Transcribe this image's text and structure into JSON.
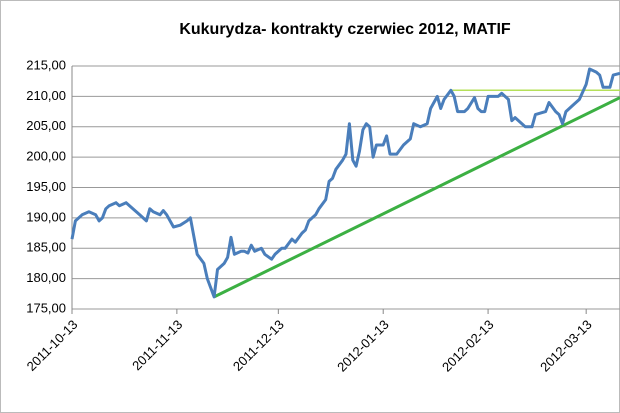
{
  "chart_data": {
    "type": "line",
    "title": "Kukurydza- kontrakty czerwiec 2012, MATIF",
    "x": [
      "2011-10-13",
      "2011-10-14",
      "2011-10-16",
      "2011-10-18",
      "2011-10-20",
      "2011-10-21",
      "2011-10-22",
      "2011-10-23",
      "2011-10-24",
      "2011-10-26",
      "2011-10-27",
      "2011-10-29",
      "2011-10-30",
      "2011-11-01",
      "2011-11-02",
      "2011-11-04",
      "2011-11-05",
      "2011-11-06",
      "2011-11-08",
      "2011-11-09",
      "2011-11-10",
      "2011-11-12",
      "2011-11-14",
      "2011-11-16",
      "2011-11-17",
      "2011-11-18",
      "2011-11-19",
      "2011-11-21",
      "2011-11-22",
      "2011-11-24",
      "2011-11-25",
      "2011-11-27",
      "2011-11-28",
      "2011-11-29",
      "2011-11-30",
      "2011-12-02",
      "2011-12-03",
      "2011-12-04",
      "2011-12-05",
      "2011-12-06",
      "2011-12-08",
      "2011-12-09",
      "2011-12-11",
      "2011-12-12",
      "2011-12-14",
      "2011-12-15",
      "2011-12-17",
      "2011-12-18",
      "2011-12-20",
      "2011-12-21",
      "2011-12-22",
      "2011-12-24",
      "2011-12-25",
      "2011-12-27",
      "2011-12-28",
      "2011-12-29",
      "2011-12-30",
      "2012-01-01",
      "2012-01-02",
      "2012-01-03",
      "2012-01-04",
      "2012-01-05",
      "2012-01-06",
      "2012-01-07",
      "2012-01-08",
      "2012-01-09",
      "2012-01-10",
      "2012-01-11",
      "2012-01-13",
      "2012-01-14",
      "2012-01-15",
      "2012-01-17",
      "2012-01-19",
      "2012-01-21",
      "2012-01-22",
      "2012-01-24",
      "2012-01-26",
      "2012-01-27",
      "2012-01-29",
      "2012-01-30",
      "2012-01-31",
      "2012-02-02",
      "2012-02-03",
      "2012-02-04",
      "2012-02-06",
      "2012-02-07",
      "2012-02-09",
      "2012-02-10",
      "2012-02-11",
      "2012-02-12",
      "2012-02-13",
      "2012-02-16",
      "2012-02-17",
      "2012-02-19",
      "2012-02-20",
      "2012-02-21",
      "2012-02-23",
      "2012-02-24",
      "2012-02-26",
      "2012-02-27",
      "2012-03-01",
      "2012-03-02",
      "2012-03-04",
      "2012-03-05",
      "2012-03-06",
      "2012-03-07",
      "2012-03-09",
      "2012-03-11",
      "2012-03-13",
      "2012-03-14",
      "2012-03-16",
      "2012-03-17",
      "2012-03-18",
      "2012-03-20",
      "2012-03-21",
      "2012-03-23"
    ],
    "series": [
      {
        "color": "#4a7ebb",
        "values": [
          186.5,
          189.5,
          190.5,
          191,
          190.5,
          189.5,
          190,
          191.5,
          192,
          192.5,
          192,
          192.5,
          192,
          191,
          190.5,
          189.5,
          191.5,
          191,
          190.5,
          191.2,
          190.5,
          188.5,
          188.8,
          189.5,
          190,
          187,
          184,
          182.5,
          180,
          177,
          181.5,
          182.5,
          183.5,
          186.8,
          184,
          184.5,
          184.5,
          184.2,
          185.5,
          184.5,
          185,
          184,
          183.2,
          184,
          185,
          185,
          186.5,
          186,
          187.5,
          188,
          189.5,
          190.5,
          191.5,
          193,
          196,
          196.5,
          198,
          199.5,
          200.5,
          205.5,
          199.5,
          198.5,
          201,
          204.5,
          205.5,
          205,
          200,
          202,
          202,
          203.5,
          200.5,
          200.5,
          202,
          203,
          205.5,
          205,
          205.5,
          208,
          210,
          208,
          209.5,
          211,
          210,
          207.5,
          207.5,
          208,
          209.8,
          208,
          207.5,
          207.5,
          210,
          210,
          210.5,
          209.5,
          206,
          206.5,
          205.5,
          205,
          205,
          207,
          207.5,
          209,
          207.5,
          207,
          205.5,
          207.5,
          208.5,
          209.5,
          212,
          214.5,
          214,
          213.5,
          211.5,
          211.5,
          213.5,
          213.8
        ]
      }
    ],
    "lines": [
      {
        "color": "#3cb043",
        "x": [
          "2011-11-24",
          "2012-03-23"
        ],
        "y": [
          177,
          209.8
        ]
      },
      {
        "color": "#b5e05a",
        "x": [
          "2012-02-02",
          "2012-03-23"
        ],
        "y": [
          211,
          211
        ]
      }
    ],
    "xlim": [
      "2011-10-13",
      "2012-03-23"
    ],
    "xticks": [
      "2011-10-13",
      "2011-11-13",
      "2011-12-13",
      "2012-01-13",
      "2012-02-13",
      "2012-03-13"
    ],
    "ylim": [
      175,
      215
    ],
    "yticks": [
      {
        "value": 175,
        "label": "175,00"
      },
      {
        "value": 180,
        "label": "180,00"
      },
      {
        "value": 185,
        "label": "185,00"
      },
      {
        "value": 190,
        "label": "190,00"
      },
      {
        "value": 195,
        "label": "195,00"
      },
      {
        "value": 200,
        "label": "200,00"
      },
      {
        "value": 205,
        "label": "205,00"
      },
      {
        "value": 210,
        "label": "210,00"
      },
      {
        "value": 215,
        "label": "215,00"
      }
    ],
    "grid": true
  }
}
